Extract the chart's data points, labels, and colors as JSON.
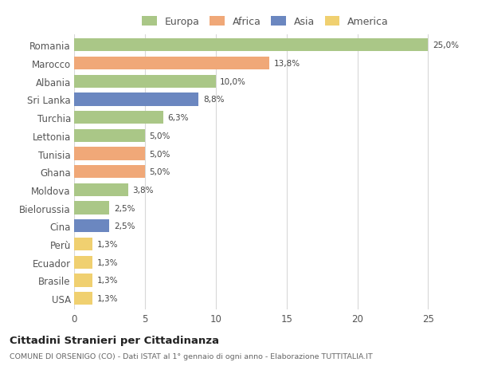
{
  "countries": [
    "Romania",
    "Marocco",
    "Albania",
    "Sri Lanka",
    "Turchia",
    "Lettonia",
    "Tunisia",
    "Ghana",
    "Moldova",
    "Bielorussia",
    "Cina",
    "Perù",
    "Ecuador",
    "Brasile",
    "USA"
  ],
  "values": [
    25.0,
    13.8,
    10.0,
    8.8,
    6.3,
    5.0,
    5.0,
    5.0,
    3.8,
    2.5,
    2.5,
    1.3,
    1.3,
    1.3,
    1.3
  ],
  "labels": [
    "25,0%",
    "13,8%",
    "10,0%",
    "8,8%",
    "6,3%",
    "5,0%",
    "5,0%",
    "5,0%",
    "3,8%",
    "2,5%",
    "2,5%",
    "1,3%",
    "1,3%",
    "1,3%",
    "1,3%"
  ],
  "continents": [
    "Europa",
    "Africa",
    "Europa",
    "Asia",
    "Europa",
    "Europa",
    "Africa",
    "Africa",
    "Europa",
    "Europa",
    "Asia",
    "America",
    "America",
    "America",
    "America"
  ],
  "colors": {
    "Europa": "#aac787",
    "Africa": "#f0a878",
    "Asia": "#6b87c0",
    "America": "#f0d070"
  },
  "legend_order": [
    "Europa",
    "Africa",
    "Asia",
    "America"
  ],
  "title": "Cittadini Stranieri per Cittadinanza",
  "subtitle": "COMUNE DI ORSENIGO (CO) - Dati ISTAT al 1° gennaio di ogni anno - Elaborazione TUTTITALIA.IT",
  "xlim": [
    0,
    27
  ],
  "xticks": [
    0,
    5,
    10,
    15,
    20,
    25
  ],
  "bg_color": "#ffffff",
  "grid_color": "#d8d8d8",
  "bar_height": 0.72
}
